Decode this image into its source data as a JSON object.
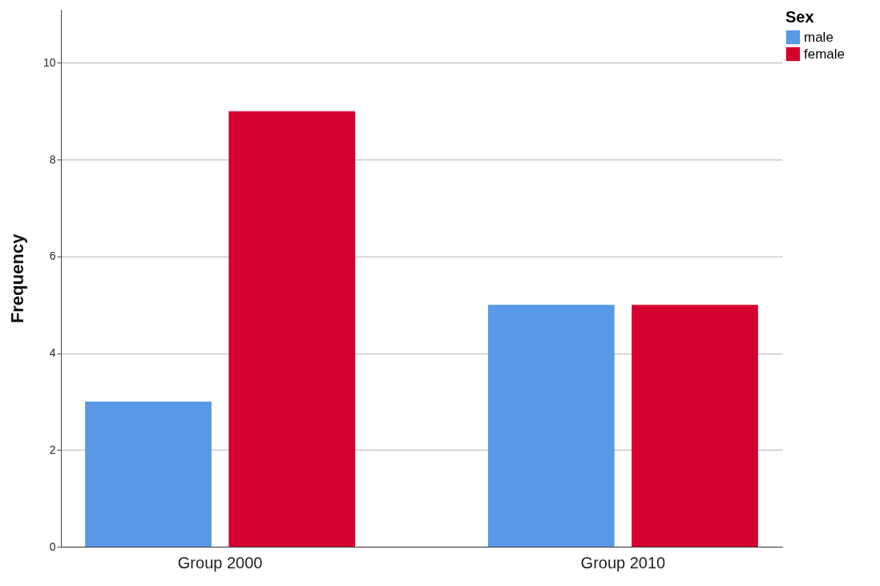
{
  "chart_data": {
    "type": "bar",
    "categories": [
      "Group 2000",
      "Group 2010"
    ],
    "series": [
      {
        "name": "male",
        "color": "#5898e4",
        "values": [
          3,
          5
        ]
      },
      {
        "name": "female",
        "color": "#d5002f",
        "values": [
          9,
          5
        ]
      }
    ],
    "ylabel": "Frequency",
    "legend_title": "Sex",
    "ylim": [
      0,
      11.1
    ],
    "yticks": [
      0,
      2,
      4,
      6,
      8,
      10
    ],
    "grid": "y",
    "legend": "top right"
  }
}
